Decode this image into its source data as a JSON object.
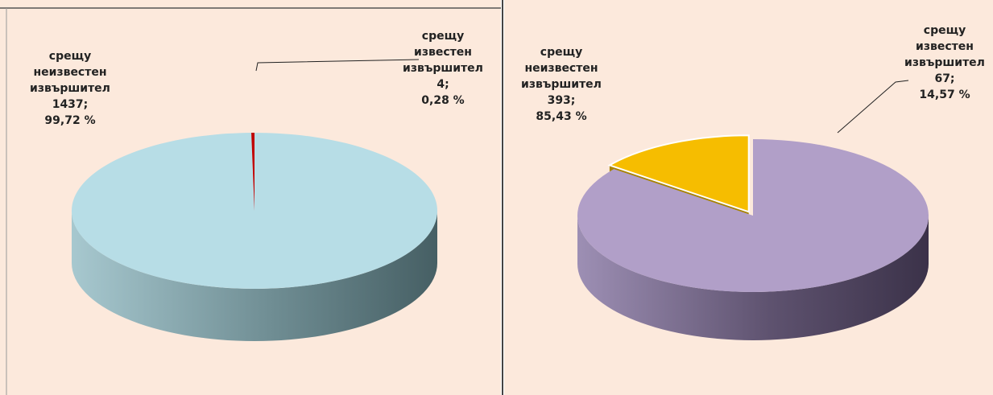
{
  "chart_data": [
    {
      "type": "pie",
      "categories": [
        "срещу неизвестен извършител",
        "срещу известен извършител"
      ],
      "values": [
        1437,
        4
      ],
      "value_labels": [
        "1437;",
        "4;"
      ],
      "percent_labels": [
        "99,72 %",
        "0,28 %"
      ],
      "colors": [
        "#b7dde6",
        "#c00000"
      ]
    },
    {
      "type": "pie",
      "categories": [
        "срещу неизвестен извършител",
        "срещу известен извършител"
      ],
      "values": [
        393,
        67
      ],
      "value_labels": [
        "393;",
        "67;"
      ],
      "percent_labels": [
        "85,43 %",
        "14,57 %"
      ],
      "colors": [
        "#b19fc8",
        "#f6bd00"
      ]
    }
  ]
}
